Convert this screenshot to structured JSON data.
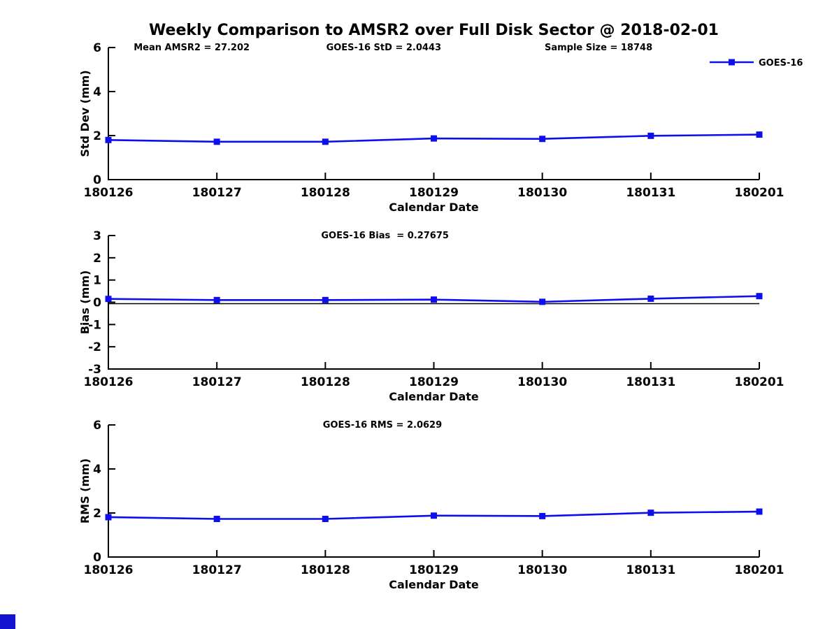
{
  "figure": {
    "title": "Weekly Comparison to AMSR2 over Full Disk Sector @ 2018-02-01",
    "background_color": "#ffffff",
    "line_color": "#0f0fee",
    "axis_color": "#000000",
    "legend": {
      "label": "GOES-16",
      "position": "top-right"
    },
    "corner_swatch_color": "#1414d0"
  },
  "chart_data": [
    {
      "type": "line",
      "name": "std_dev",
      "title": "",
      "ylabel": "Std Dev (mm)",
      "xlabel": "Calendar Date",
      "ylim": [
        0,
        6
      ],
      "yticks": [
        0,
        2,
        4,
        6
      ],
      "categories": [
        "180126",
        "180127",
        "180128",
        "180129",
        "180130",
        "180131",
        "180201"
      ],
      "series": [
        {
          "name": "GOES-16",
          "values": [
            1.8,
            1.72,
            1.72,
            1.87,
            1.85,
            1.99,
            2.0443
          ]
        }
      ],
      "annotations": [
        {
          "text": "Mean AMSR2 = 27.202",
          "xfrac": 0.128
        },
        {
          "text": "GOES-16 StD = 2.0443",
          "xfrac": 0.423
        },
        {
          "text": "Sample Size = 18748",
          "xfrac": 0.753
        }
      ],
      "zero_line": false,
      "show_legend": true,
      "grid": false
    },
    {
      "type": "line",
      "name": "bias",
      "title": "",
      "ylabel": "Bias (mm)",
      "xlabel": "Calendar Date",
      "ylim": [
        -3,
        3
      ],
      "yticks": [
        -3,
        -2,
        -1,
        0,
        1,
        2,
        3
      ],
      "categories": [
        "180126",
        "180127",
        "180128",
        "180129",
        "180130",
        "180131",
        "180201"
      ],
      "series": [
        {
          "name": "GOES-16",
          "values": [
            0.15,
            0.1,
            0.1,
            0.12,
            0.02,
            0.16,
            0.27675
          ]
        }
      ],
      "annotations": [
        {
          "text": "GOES-16 Bias  = 0.27675",
          "xfrac": 0.425
        }
      ],
      "zero_line": true,
      "show_legend": false,
      "grid": false
    },
    {
      "type": "line",
      "name": "rms",
      "title": "",
      "ylabel": "RMS (mm)",
      "xlabel": "Calendar Date",
      "ylim": [
        0,
        6
      ],
      "yticks": [
        0,
        2,
        4,
        6
      ],
      "categories": [
        "180126",
        "180127",
        "180128",
        "180129",
        "180130",
        "180131",
        "180201"
      ],
      "series": [
        {
          "name": "GOES-16",
          "values": [
            1.81,
            1.73,
            1.73,
            1.88,
            1.86,
            2.01,
            2.0629
          ]
        }
      ],
      "annotations": [
        {
          "text": "GOES-16 RMS = 2.0629",
          "xfrac": 0.421
        }
      ],
      "zero_line": false,
      "show_legend": false,
      "grid": false
    }
  ]
}
